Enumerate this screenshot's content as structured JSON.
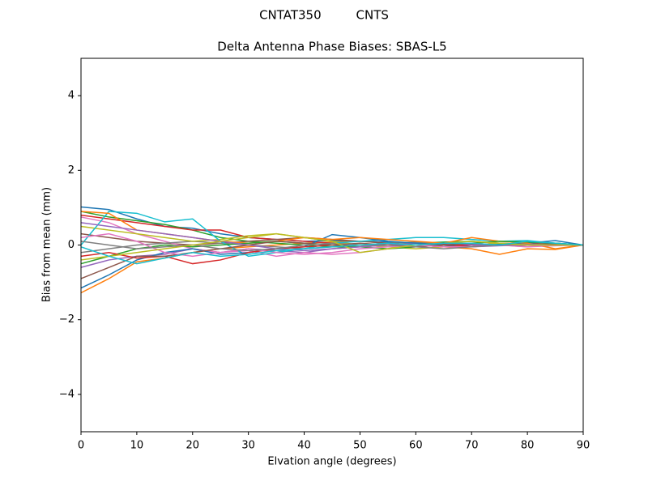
{
  "chart_data": {
    "type": "line",
    "suptitle": "CNTAT350         CNTS",
    "title": "Delta Antenna Phase Biases: SBAS-L5",
    "xlabel": "Elvation angle (degrees)",
    "ylabel": "Bias from mean (mm)",
    "x": [
      0,
      5,
      10,
      15,
      20,
      25,
      30,
      35,
      40,
      45,
      50,
      55,
      60,
      65,
      70,
      75,
      80,
      85,
      90
    ],
    "xlim": [
      0,
      90
    ],
    "xticks": [
      0,
      10,
      20,
      30,
      40,
      50,
      60,
      70,
      80,
      90
    ],
    "ylim": [
      -5,
      5
    ],
    "yticks": [
      {
        "value": -4,
        "label": "−4"
      },
      {
        "value": -2,
        "label": "−2"
      },
      0,
      2,
      4
    ],
    "series": [
      {
        "color": "#1f77b4",
        "values": [
          1.02,
          0.95,
          0.7,
          0.5,
          0.45,
          0.3,
          0.2,
          0.15,
          0.1,
          0.12,
          0.1,
          0.08,
          0.05,
          0.05,
          0.03,
          0.02,
          0.0,
          0.05,
          0
        ]
      },
      {
        "color": "#ff7f0e",
        "values": [
          -1.28,
          -0.9,
          -0.45,
          -0.35,
          -0.2,
          -0.1,
          -0.05,
          0,
          0.05,
          0.08,
          0.1,
          0.05,
          0.0,
          -0.05,
          -0.1,
          -0.25,
          -0.1,
          -0.12,
          0
        ]
      },
      {
        "color": "#2ca02c",
        "values": [
          0.9,
          0.75,
          0.65,
          0.55,
          0.4,
          0.2,
          0.1,
          0.05,
          0.0,
          -0.05,
          -0.05,
          0.0,
          0.05,
          0.08,
          0.1,
          0.05,
          0.02,
          0.03,
          0
        ]
      },
      {
        "color": "#d62728",
        "values": [
          0.8,
          0.7,
          0.6,
          0.5,
          0.4,
          0.4,
          0.2,
          0.15,
          0.1,
          0.05,
          0.0,
          -0.05,
          0.0,
          0.02,
          0.0,
          0.05,
          0.0,
          0.03,
          0
        ]
      },
      {
        "color": "#9467bd",
        "values": [
          -0.6,
          -0.4,
          -0.3,
          -0.25,
          -0.1,
          -0.2,
          -0.1,
          -0.15,
          -0.2,
          -0.1,
          -0.05,
          0.0,
          0.05,
          0.0,
          -0.05,
          -0.02,
          0.0,
          0.0,
          0
        ]
      },
      {
        "color": "#8c564b",
        "values": [
          0.3,
          0.2,
          0.1,
          0.05,
          0.0,
          0.05,
          0.1,
          0.15,
          0.2,
          0.15,
          0.1,
          0.05,
          0.0,
          -0.05,
          0.0,
          0.02,
          0.05,
          0.02,
          0
        ]
      },
      {
        "color": "#e377c2",
        "values": [
          0.75,
          0.6,
          0.3,
          0.1,
          -0.1,
          -0.2,
          -0.15,
          -0.3,
          -0.2,
          -0.25,
          -0.2,
          -0.1,
          -0.05,
          0.0,
          0.05,
          0.0,
          -0.05,
          -0.02,
          0
        ]
      },
      {
        "color": "#7f7f7f",
        "values": [
          -0.2,
          -0.1,
          0.0,
          0.05,
          0.1,
          0.05,
          0.0,
          -0.05,
          -0.1,
          -0.05,
          0.0,
          0.05,
          0.08,
          0.05,
          0.0,
          0.02,
          0.0,
          0.0,
          0
        ]
      },
      {
        "color": "#bcbd22",
        "values": [
          0.5,
          0.4,
          0.3,
          0.2,
          0.1,
          0.15,
          0.25,
          0.3,
          0.2,
          0.1,
          0.0,
          -0.05,
          -0.1,
          -0.05,
          0.0,
          0.05,
          0.02,
          0.0,
          0
        ]
      },
      {
        "color": "#17becf",
        "values": [
          0.0,
          0.9,
          0.85,
          0.62,
          0.7,
          0.1,
          -0.3,
          -0.2,
          -0.1,
          0.05,
          0.1,
          0.15,
          0.2,
          0.2,
          0.15,
          0.1,
          0.12,
          0.05,
          0
        ]
      },
      {
        "color": "#1f77b4",
        "values": [
          -1.15,
          -0.8,
          -0.4,
          -0.2,
          -0.1,
          -0.25,
          -0.2,
          -0.1,
          -0.05,
          0.28,
          0.2,
          0.1,
          0.05,
          0.0,
          -0.05,
          0.02,
          0.05,
          0.12,
          0
        ]
      },
      {
        "color": "#ff7f0e",
        "values": [
          0.9,
          0.85,
          0.4,
          0.3,
          0.2,
          0.1,
          0.05,
          0.1,
          0.2,
          0.15,
          0.2,
          0.15,
          0.1,
          0.05,
          0.2,
          0.1,
          0.05,
          -0.1,
          0
        ]
      },
      {
        "color": "#2ca02c",
        "values": [
          -0.5,
          -0.3,
          -0.1,
          0.0,
          -0.05,
          0.0,
          0.05,
          0.1,
          0.05,
          0.0,
          -0.05,
          -0.1,
          -0.05,
          0.0,
          0.05,
          0.1,
          0.08,
          0.05,
          0
        ]
      },
      {
        "color": "#d62728",
        "values": [
          -0.3,
          -0.2,
          -0.35,
          -0.3,
          -0.5,
          -0.4,
          -0.2,
          -0.1,
          -0.05,
          0.0,
          0.0,
          0.05,
          0.0,
          -0.05,
          0.0,
          0.0,
          0.0,
          0.0,
          0
        ]
      },
      {
        "color": "#9467bd",
        "values": [
          0.6,
          0.5,
          0.4,
          0.3,
          0.2,
          0.1,
          0.0,
          -0.1,
          -0.15,
          -0.1,
          -0.05,
          0.0,
          0.0,
          0.05,
          0.0,
          0.0,
          0.02,
          0.0,
          0
        ]
      },
      {
        "color": "#8c564b",
        "values": [
          -0.9,
          -0.6,
          -0.3,
          -0.3,
          -0.2,
          -0.1,
          0.0,
          0.1,
          0.05,
          0.0,
          0.05,
          0.0,
          -0.05,
          0.0,
          0.05,
          0.0,
          0.0,
          0.0,
          0
        ]
      },
      {
        "color": "#e377c2",
        "values": [
          0.2,
          0.3,
          0.1,
          -0.2,
          -0.3,
          -0.2,
          -0.1,
          -0.2,
          -0.25,
          -0.2,
          -0.1,
          -0.05,
          0.0,
          -0.05,
          -0.05,
          0.0,
          -0.05,
          0.0,
          0
        ]
      },
      {
        "color": "#7f7f7f",
        "values": [
          0.1,
          0.0,
          -0.1,
          -0.05,
          0.0,
          -0.1,
          -0.15,
          -0.1,
          0.0,
          0.05,
          0.0,
          0.0,
          -0.05,
          -0.1,
          -0.05,
          0.0,
          0.0,
          0.0,
          0
        ]
      },
      {
        "color": "#bcbd22",
        "values": [
          -0.4,
          -0.3,
          -0.2,
          -0.1,
          0.0,
          0.1,
          0.2,
          0.3,
          0.2,
          0.1,
          -0.2,
          -0.1,
          0.0,
          0.05,
          0.1,
          0.05,
          0.0,
          0.0,
          0
        ]
      },
      {
        "color": "#17becf",
        "values": [
          -0.05,
          -0.3,
          -0.5,
          -0.35,
          -0.2,
          -0.3,
          -0.25,
          -0.15,
          -0.1,
          -0.05,
          0.0,
          0.05,
          0.0,
          0.05,
          0.05,
          0.0,
          0.1,
          0.05,
          0
        ]
      }
    ]
  }
}
